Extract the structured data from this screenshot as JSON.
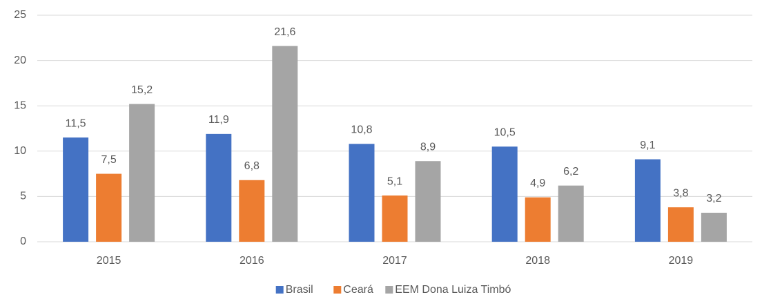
{
  "chart_data": {
    "type": "bar",
    "categories": [
      "2015",
      "2016",
      "2017",
      "2018",
      "2019"
    ],
    "series": [
      {
        "name": "Brasil",
        "color": "#4472c4",
        "values": [
          11.5,
          11.9,
          10.8,
          10.5,
          9.1
        ],
        "value_labels": [
          "11,5",
          "11,9",
          "10,8",
          "10,5",
          "9,1"
        ]
      },
      {
        "name": "Ceará",
        "color": "#ed7d31",
        "values": [
          7.5,
          6.8,
          5.1,
          4.9,
          3.8
        ],
        "value_labels": [
          "7,5",
          "6,8",
          "5,1",
          "4,9",
          "3,8"
        ]
      },
      {
        "name": "EEM Dona Luiza Timbó",
        "color": "#a5a5a5",
        "values": [
          15.2,
          21.6,
          8.9,
          6.2,
          3.2
        ],
        "value_labels": [
          "15,2",
          "21,6",
          "8,9",
          "6,2",
          "3,2"
        ]
      }
    ],
    "ylim": [
      0,
      25
    ],
    "yticks": [
      0,
      5,
      10,
      15,
      20,
      25
    ],
    "grid": true,
    "legend": "bottom"
  }
}
